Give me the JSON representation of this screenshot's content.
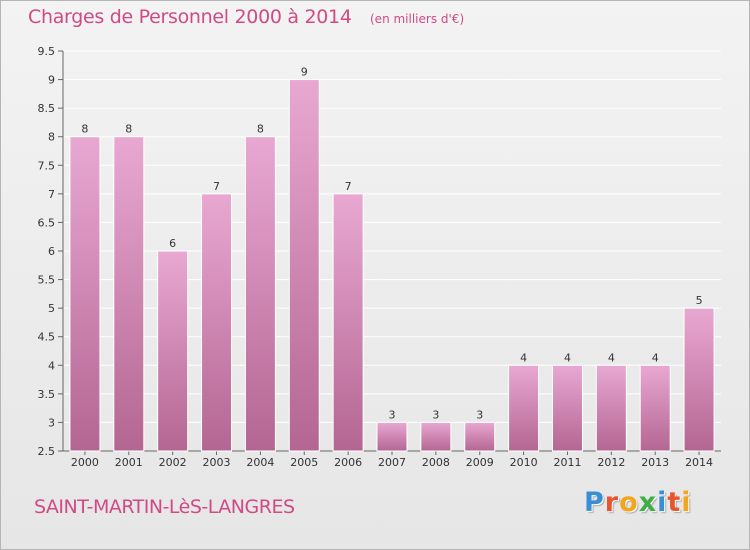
{
  "header": {
    "title": "Charges de Personnel 2000 à 2014",
    "subtitle": "(en milliers d'€)"
  },
  "footer": {
    "place": "SAINT-MARTIN-LèS-LANGRES",
    "logo_letters": [
      {
        "char": "P",
        "color": "#3a8fd4"
      },
      {
        "char": "r",
        "color": "#e8542e"
      },
      {
        "char": "o",
        "color": "#f1a61c"
      },
      {
        "char": "x",
        "color": "#3fae49"
      },
      {
        "char": "i",
        "color": "#3a8fd4"
      },
      {
        "char": "t",
        "color": "#e8542e"
      },
      {
        "char": "i",
        "color": "#f1a61c"
      }
    ]
  },
  "chart_data": {
    "type": "bar",
    "categories": [
      "2000",
      "2001",
      "2002",
      "2003",
      "2004",
      "2005",
      "2006",
      "2007",
      "2008",
      "2009",
      "2010",
      "2011",
      "2012",
      "2013",
      "2014"
    ],
    "values": [
      8,
      8,
      6,
      7,
      8,
      9,
      7,
      3,
      3,
      3,
      4,
      4,
      4,
      4,
      5
    ],
    "data_labels": [
      "8",
      "8",
      "6",
      "7",
      "8",
      "9",
      "7",
      "3",
      "3",
      "3",
      "4",
      "4",
      "4",
      "4",
      "5"
    ],
    "ylim": [
      2.5,
      9.5
    ],
    "yticks": [
      2.5,
      3,
      3.5,
      4,
      4.5,
      5,
      5.5,
      6,
      6.5,
      7,
      7.5,
      8,
      8.5,
      9,
      9.5
    ],
    "ytick_labels": [
      "2.5",
      "3",
      "3.5",
      "4",
      "4.5",
      "5",
      "5.5",
      "6",
      "6.5",
      "7",
      "7.5",
      "8",
      "8.5",
      "9",
      "9.5"
    ],
    "grid": true,
    "bar_color_top": "#e8a8d2",
    "bar_color_bottom": "#b46692",
    "grid_color": "#ffffff"
  }
}
